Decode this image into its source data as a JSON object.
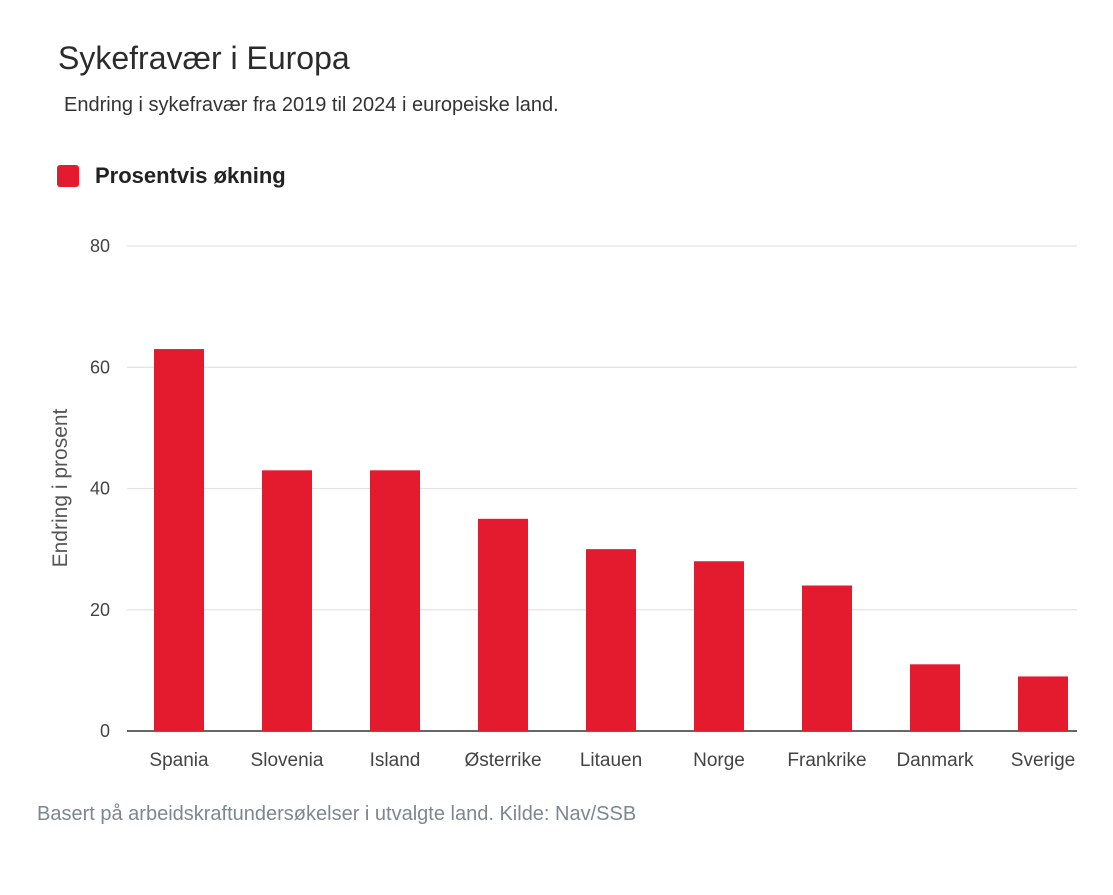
{
  "colors": {
    "bar": "#e41b2f",
    "grid": "#e3e3e3",
    "axis": "#333333"
  },
  "legend": {
    "label": "Prosentvis økning",
    "color": "#e41b2f"
  },
  "source": "Basert på arbeidskraftundersøkelser i utvalgte land. Kilde: Nav/SSB",
  "chart_data": {
    "type": "bar",
    "title": "Sykefravær i Europa",
    "subtitle": "Endring i sykefravær fra 2019 til 2024 i europeiske land.",
    "ylabel": "Endring i prosent",
    "xlabel": "",
    "ylim": [
      0,
      80
    ],
    "yticks": [
      0,
      20,
      40,
      60,
      80
    ],
    "grid": true,
    "legend_position": "top-left",
    "categories": [
      "Spania",
      "Slovenia",
      "Island",
      "Østerrike",
      "Litauen",
      "Norge",
      "Frankrike",
      "Danmark",
      "Sverige"
    ],
    "series": [
      {
        "name": "Prosentvis økning",
        "values": [
          63,
          43,
          43,
          35,
          30,
          28,
          24,
          11,
          9
        ]
      }
    ]
  }
}
